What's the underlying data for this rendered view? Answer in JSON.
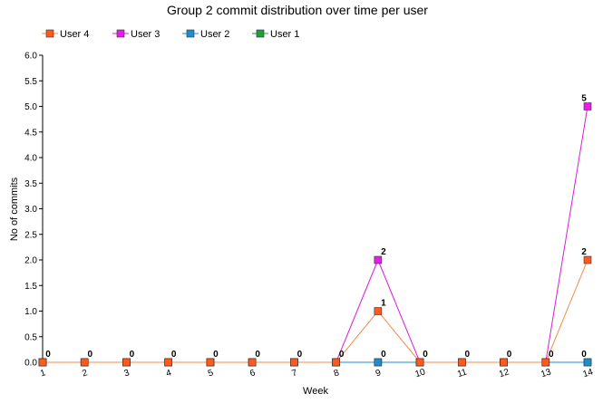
{
  "chart_data": {
    "type": "line",
    "title": "Group 2 commit distribution over time per user",
    "xlabel": "Week",
    "ylabel": "No of commits",
    "x": [
      1,
      2,
      3,
      4,
      5,
      6,
      7,
      8,
      9,
      10,
      11,
      12,
      13,
      14
    ],
    "ylim": [
      0,
      6
    ],
    "yticks": [
      "0.0",
      "0.5",
      "1.0",
      "1.5",
      "2.0",
      "2.5",
      "3.0",
      "3.5",
      "4.0",
      "4.5",
      "5.0",
      "5.5",
      "6.0"
    ],
    "grid": false,
    "legend_position": "top",
    "series": [
      {
        "name": "User 4",
        "color": "#ff5a1e",
        "line_color": "#f28c4a",
        "values": [
          0,
          0,
          0,
          0,
          0,
          0,
          0,
          0,
          1,
          0,
          0,
          0,
          0,
          2
        ]
      },
      {
        "name": "User 3",
        "color": "#e61ee6",
        "line_color": "#d81ed8",
        "values": [
          0,
          0,
          0,
          0,
          0,
          0,
          0,
          0,
          2,
          0,
          0,
          0,
          0,
          5
        ]
      },
      {
        "name": "User 2",
        "color": "#1e8ccd",
        "line_color": "#1e8ccd",
        "values": [
          0,
          0,
          0,
          0,
          0,
          0,
          0,
          0,
          0,
          0,
          0,
          0,
          0,
          0
        ]
      },
      {
        "name": "User 1",
        "color": "#1e9e3c",
        "line_color": "#1e9e3c",
        "values": [
          0,
          0,
          0,
          0,
          0,
          0,
          0,
          0,
          0,
          0,
          0,
          0,
          0,
          0
        ]
      }
    ],
    "data_labels": [
      {
        "x": 1,
        "y": 0,
        "text": "0"
      },
      {
        "x": 2,
        "y": 0,
        "text": "0"
      },
      {
        "x": 3,
        "y": 0,
        "text": "0"
      },
      {
        "x": 4,
        "y": 0,
        "text": "0"
      },
      {
        "x": 5,
        "y": 0,
        "text": "0"
      },
      {
        "x": 6,
        "y": 0,
        "text": "0"
      },
      {
        "x": 7,
        "y": 0,
        "text": "0"
      },
      {
        "x": 8,
        "y": 0,
        "text": "0"
      },
      {
        "x": 9,
        "y": 0,
        "text": "0"
      },
      {
        "x": 9,
        "y": 1,
        "text": "1"
      },
      {
        "x": 9,
        "y": 2,
        "text": "2"
      },
      {
        "x": 10,
        "y": 0,
        "text": "0"
      },
      {
        "x": 11,
        "y": 0,
        "text": "0"
      },
      {
        "x": 12,
        "y": 0,
        "text": "0"
      },
      {
        "x": 13,
        "y": 0,
        "text": "0"
      },
      {
        "x": 14,
        "y": 0,
        "text": "0"
      },
      {
        "x": 14,
        "y": 2,
        "text": "2"
      },
      {
        "x": 14,
        "y": 5,
        "text": "5"
      }
    ]
  }
}
